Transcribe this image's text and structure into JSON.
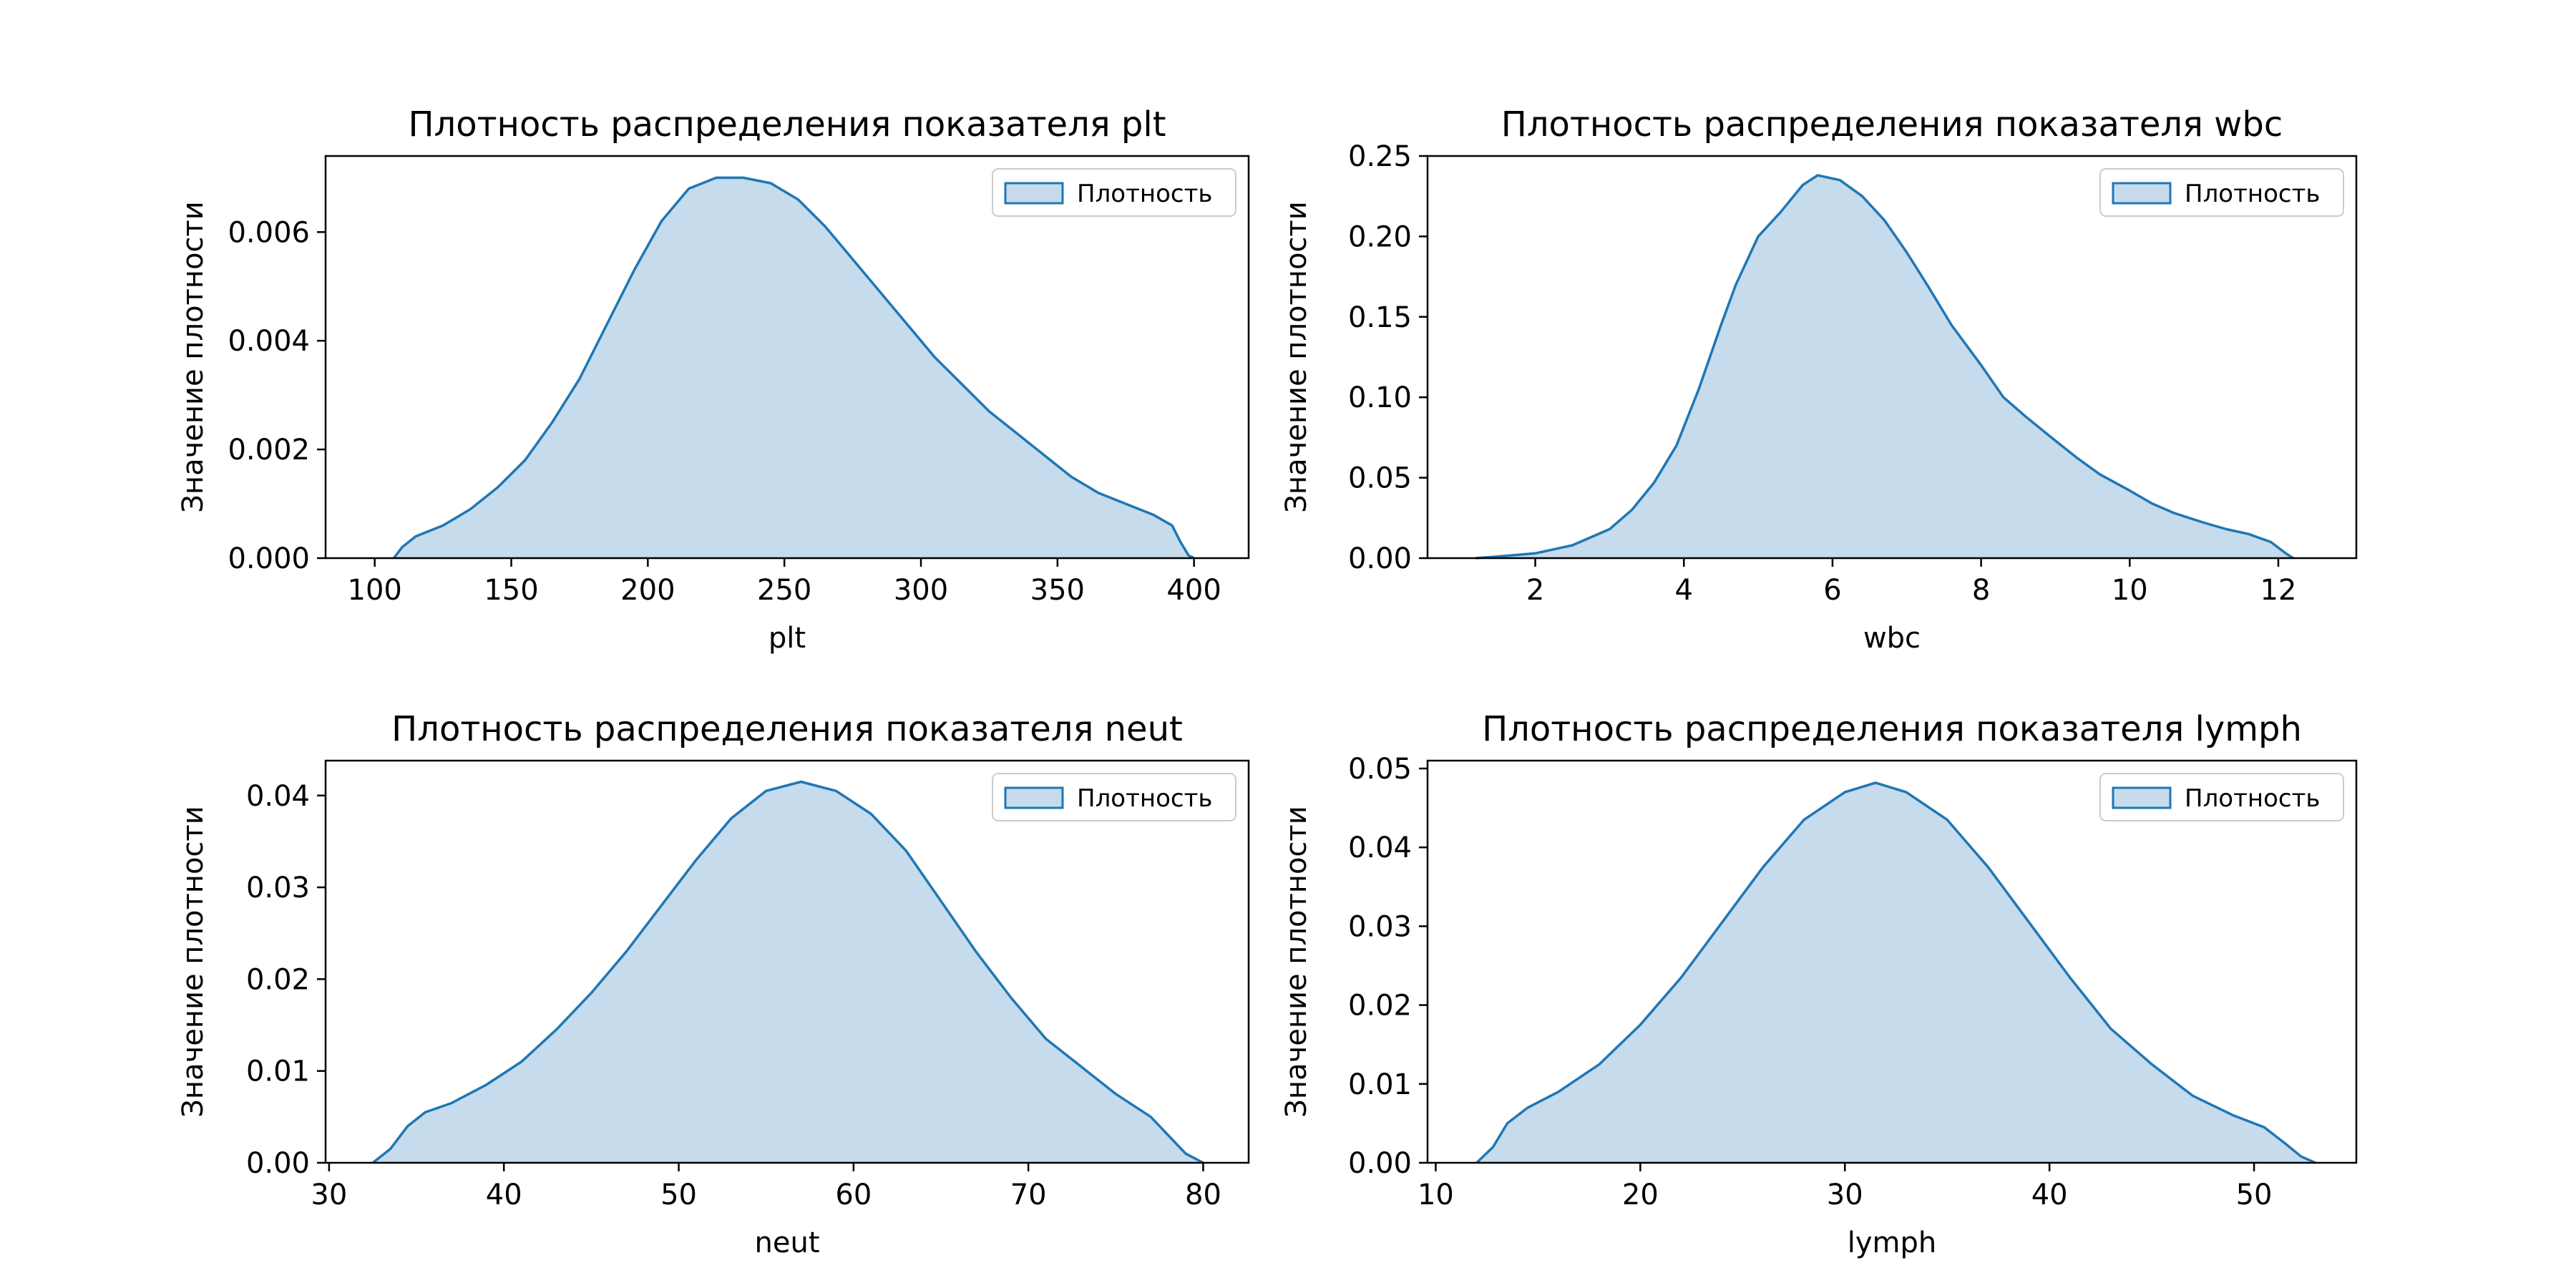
{
  "figure": {
    "background": "#ffffff",
    "fill_color": "#c6dbec",
    "line_color": "#1f77b4"
  },
  "chart_data": [
    {
      "type": "area",
      "title": "Плотность распределения показателя plt",
      "xlabel": "plt",
      "ylabel": "Значение плотности",
      "legend": {
        "label": "Плотность",
        "placement": "upper right"
      },
      "xlim": [
        82,
        420
      ],
      "ylim": [
        0,
        0.0074
      ],
      "xticks": [
        100,
        150,
        200,
        250,
        300,
        350,
        400
      ],
      "xtick_labels": [
        "100",
        "150",
        "200",
        "250",
        "300",
        "350",
        "400"
      ],
      "yticks": [
        0,
        0.002,
        0.004,
        0.006
      ],
      "ytick_labels": [
        "0.000",
        "0.002",
        "0.004",
        "0.006"
      ],
      "x": [
        107,
        110,
        115,
        125,
        135,
        145,
        155,
        165,
        175,
        185,
        195,
        205,
        215,
        225,
        235,
        245,
        255,
        265,
        275,
        285,
        295,
        305,
        315,
        325,
        335,
        345,
        355,
        365,
        375,
        385,
        392,
        395,
        398,
        400
      ],
      "y": [
        0,
        0.0002,
        0.0004,
        0.0006,
        0.0009,
        0.0013,
        0.0018,
        0.0025,
        0.0033,
        0.0043,
        0.0053,
        0.0062,
        0.0068,
        0.007,
        0.007,
        0.0069,
        0.0066,
        0.0061,
        0.0055,
        0.0049,
        0.0043,
        0.0037,
        0.0032,
        0.0027,
        0.0023,
        0.0019,
        0.0015,
        0.0012,
        0.001,
        0.0008,
        0.0006,
        0.0003,
        5e-05,
        0
      ]
    },
    {
      "type": "area",
      "title": "Плотность распределения показателя wbc",
      "xlabel": "wbc",
      "ylabel": "Значение плотности",
      "legend": {
        "label": "Плотность",
        "placement": "upper right"
      },
      "xlim": [
        0.55,
        13.05
      ],
      "ylim": [
        0,
        0.25
      ],
      "xticks": [
        2,
        4,
        6,
        8,
        10,
        12
      ],
      "xtick_labels": [
        "2",
        "4",
        "6",
        "8",
        "10",
        "12"
      ],
      "yticks": [
        0,
        0.05,
        0.1,
        0.15,
        0.2,
        0.25
      ],
      "ytick_labels": [
        "0.00",
        "0.05",
        "0.10",
        "0.15",
        "0.20",
        "0.25"
      ],
      "x": [
        1.2,
        1.5,
        2.0,
        2.5,
        3.0,
        3.3,
        3.6,
        3.9,
        4.2,
        4.5,
        4.7,
        5.0,
        5.3,
        5.6,
        5.8,
        6.1,
        6.4,
        6.7,
        7.0,
        7.3,
        7.6,
        8.0,
        8.3,
        8.6,
        9.0,
        9.3,
        9.6,
        10.0,
        10.3,
        10.6,
        11.0,
        11.3,
        11.6,
        11.9,
        12.1,
        12.2
      ],
      "y": [
        0,
        0.001,
        0.003,
        0.008,
        0.018,
        0.03,
        0.047,
        0.07,
        0.105,
        0.145,
        0.17,
        0.2,
        0.215,
        0.232,
        0.238,
        0.235,
        0.225,
        0.21,
        0.19,
        0.168,
        0.145,
        0.12,
        0.1,
        0.088,
        0.073,
        0.062,
        0.052,
        0.042,
        0.034,
        0.028,
        0.022,
        0.018,
        0.015,
        0.01,
        0.003,
        0
      ]
    },
    {
      "type": "area",
      "title": "Плотность распределения показателя neut",
      "xlabel": "neut",
      "ylabel": "Значение плотности",
      "legend": {
        "label": "Плотность",
        "placement": "upper right"
      },
      "xlim": [
        29.8,
        82.6
      ],
      "ylim": [
        0,
        0.0438
      ],
      "xticks": [
        30,
        40,
        50,
        60,
        70,
        80
      ],
      "xtick_labels": [
        "30",
        "40",
        "50",
        "60",
        "70",
        "80"
      ],
      "yticks": [
        0,
        0.01,
        0.02,
        0.03,
        0.04
      ],
      "ytick_labels": [
        "0.00",
        "0.01",
        "0.02",
        "0.03",
        "0.04"
      ],
      "x": [
        32.5,
        33.5,
        34.5,
        35.5,
        37,
        39,
        41,
        43,
        45,
        47,
        49,
        51,
        53,
        55,
        57,
        59,
        61,
        63,
        65,
        67,
        69,
        71,
        73,
        75,
        77,
        78,
        79,
        80
      ],
      "y": [
        0,
        0.0015,
        0.004,
        0.0055,
        0.0065,
        0.0085,
        0.011,
        0.0145,
        0.0185,
        0.023,
        0.028,
        0.033,
        0.0375,
        0.0405,
        0.0415,
        0.0405,
        0.038,
        0.034,
        0.0285,
        0.023,
        0.018,
        0.0135,
        0.0105,
        0.0075,
        0.005,
        0.003,
        0.001,
        0
      ]
    },
    {
      "type": "area",
      "title": "Плотность распределения показателя lymph",
      "xlabel": "lymph",
      "ylabel": "Значение плотности",
      "legend": {
        "label": "Плотность",
        "placement": "upper right"
      },
      "xlim": [
        9.6,
        55.0
      ],
      "ylim": [
        0,
        0.051
      ],
      "xticks": [
        10,
        20,
        30,
        40,
        50
      ],
      "xtick_labels": [
        "10",
        "20",
        "30",
        "40",
        "50"
      ],
      "yticks": [
        0,
        0.01,
        0.02,
        0.03,
        0.04,
        0.05
      ],
      "ytick_labels": [
        "0.00",
        "0.01",
        "0.02",
        "0.03",
        "0.04",
        "0.05"
      ],
      "x": [
        12,
        12.8,
        13.5,
        14.5,
        16,
        18,
        20,
        22,
        24,
        26,
        28,
        30,
        31.5,
        33,
        35,
        37,
        39,
        41,
        43,
        45,
        47,
        49,
        50.5,
        51.5,
        52.3,
        53
      ],
      "y": [
        0,
        0.002,
        0.005,
        0.007,
        0.009,
        0.0125,
        0.0175,
        0.0235,
        0.0305,
        0.0375,
        0.0435,
        0.047,
        0.0482,
        0.047,
        0.0435,
        0.0375,
        0.0305,
        0.0235,
        0.017,
        0.0125,
        0.0085,
        0.006,
        0.0045,
        0.0025,
        0.0008,
        0
      ]
    }
  ]
}
